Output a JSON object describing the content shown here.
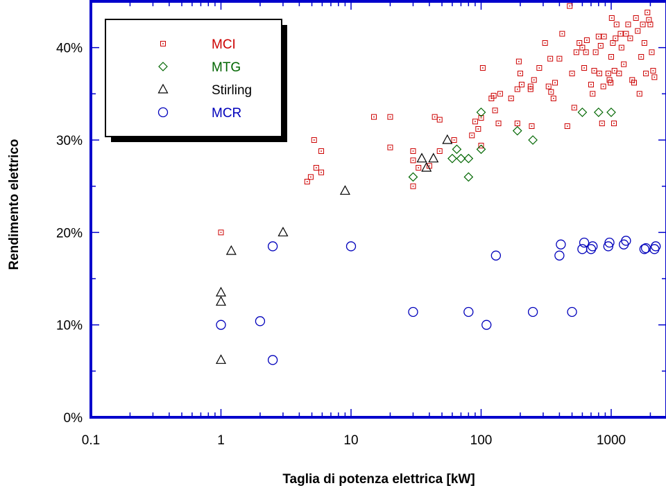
{
  "colors": {
    "frame": "#0000cc",
    "MCI": "#cc0000",
    "MTG": "#006600",
    "Stirling": "#000000",
    "MCR": "#0000bb"
  },
  "chart_data": {
    "type": "scatter",
    "xlabel": "Taglia di potenza elettrica [kW]",
    "ylabel": "Rendimento elettrico",
    "x_scale": "log",
    "xlim": [
      0.1,
      2500
    ],
    "ylim": [
      0,
      0.45
    ],
    "x_tick_labels": [
      {
        "value": 0.1,
        "label": "0.1"
      },
      {
        "value": 1,
        "label": "1"
      },
      {
        "value": 10,
        "label": "10"
      },
      {
        "value": 100,
        "label": "100"
      },
      {
        "value": 1000,
        "label": "1000"
      }
    ],
    "y_tick_labels": [
      {
        "value": 0,
        "label": "0%"
      },
      {
        "value": 0.1,
        "label": "10%"
      },
      {
        "value": 0.2,
        "label": "20%"
      },
      {
        "value": 0.3,
        "label": "30%"
      },
      {
        "value": 0.4,
        "label": "40%"
      }
    ],
    "grid": false,
    "legend_position": "top-left",
    "series": [
      {
        "name": "MCI",
        "marker": "dotted-square",
        "points": [
          [
            1,
            0.2
          ],
          [
            4.6,
            0.255
          ],
          [
            4.9,
            0.26
          ],
          [
            5.2,
            0.3
          ],
          [
            5.4,
            0.27
          ],
          [
            5.9,
            0.288
          ],
          [
            5.9,
            0.265
          ],
          [
            15,
            0.325
          ],
          [
            20,
            0.325
          ],
          [
            20,
            0.292
          ],
          [
            30,
            0.25
          ],
          [
            30,
            0.278
          ],
          [
            30,
            0.288
          ],
          [
            33,
            0.27
          ],
          [
            40,
            0.272
          ],
          [
            44,
            0.325
          ],
          [
            48,
            0.322
          ],
          [
            48,
            0.288
          ],
          [
            62,
            0.3
          ],
          [
            85,
            0.305
          ],
          [
            90,
            0.32
          ],
          [
            95,
            0.312
          ],
          [
            100,
            0.324
          ],
          [
            100,
            0.294
          ],
          [
            103,
            0.378
          ],
          [
            120,
            0.345
          ],
          [
            125,
            0.348
          ],
          [
            128,
            0.332
          ],
          [
            136,
            0.318
          ],
          [
            140,
            0.35
          ],
          [
            170,
            0.345
          ],
          [
            190,
            0.355
          ],
          [
            190,
            0.318
          ],
          [
            195,
            0.385
          ],
          [
            200,
            0.372
          ],
          [
            205,
            0.36
          ],
          [
            240,
            0.358
          ],
          [
            240,
            0.355
          ],
          [
            245,
            0.315
          ],
          [
            255,
            0.365
          ],
          [
            280,
            0.378
          ],
          [
            310,
            0.405
          ],
          [
            330,
            0.358
          ],
          [
            340,
            0.388
          ],
          [
            345,
            0.352
          ],
          [
            360,
            0.345
          ],
          [
            370,
            0.362
          ],
          [
            400,
            0.388
          ],
          [
            420,
            0.415
          ],
          [
            460,
            0.315
          ],
          [
            480,
            0.445
          ],
          [
            500,
            0.372
          ],
          [
            520,
            0.335
          ],
          [
            540,
            0.395
          ],
          [
            570,
            0.405
          ],
          [
            600,
            0.4
          ],
          [
            620,
            0.378
          ],
          [
            640,
            0.395
          ],
          [
            650,
            0.408
          ],
          [
            700,
            0.36
          ],
          [
            720,
            0.35
          ],
          [
            740,
            0.375
          ],
          [
            760,
            0.395
          ],
          [
            800,
            0.412
          ],
          [
            810,
            0.372
          ],
          [
            830,
            0.402
          ],
          [
            850,
            0.318
          ],
          [
            870,
            0.358
          ],
          [
            880,
            0.412
          ],
          [
            950,
            0.372
          ],
          [
            970,
            0.365
          ],
          [
            990,
            0.362
          ],
          [
            1000,
            0.39
          ],
          [
            1010,
            0.432
          ],
          [
            1030,
            0.405
          ],
          [
            1050,
            0.318
          ],
          [
            1060,
            0.375
          ],
          [
            1080,
            0.41
          ],
          [
            1100,
            0.425
          ],
          [
            1150,
            0.372
          ],
          [
            1180,
            0.415
          ],
          [
            1200,
            0.4
          ],
          [
            1250,
            0.382
          ],
          [
            1300,
            0.415
          ],
          [
            1350,
            0.425
          ],
          [
            1400,
            0.41
          ],
          [
            1450,
            0.365
          ],
          [
            1500,
            0.362
          ],
          [
            1550,
            0.432
          ],
          [
            1600,
            0.418
          ],
          [
            1650,
            0.35
          ],
          [
            1700,
            0.39
          ],
          [
            1750,
            0.425
          ],
          [
            1800,
            0.405
          ],
          [
            1850,
            0.372
          ],
          [
            1900,
            0.438
          ],
          [
            1950,
            0.43
          ],
          [
            2000,
            0.425
          ],
          [
            2050,
            0.395
          ],
          [
            2100,
            0.375
          ],
          [
            2150,
            0.368
          ]
        ]
      },
      {
        "name": "MTG",
        "marker": "diamond",
        "points": [
          [
            30,
            0.26
          ],
          [
            60,
            0.28
          ],
          [
            65,
            0.29
          ],
          [
            70,
            0.28
          ],
          [
            80,
            0.28
          ],
          [
            80,
            0.26
          ],
          [
            100,
            0.33
          ],
          [
            100,
            0.29
          ],
          [
            190,
            0.31
          ],
          [
            250,
            0.3
          ],
          [
            600,
            0.33
          ],
          [
            800,
            0.33
          ],
          [
            1000,
            0.33
          ]
        ]
      },
      {
        "name": "Stirling",
        "marker": "triangle",
        "points": [
          [
            1,
            0.062
          ],
          [
            1,
            0.125
          ],
          [
            1,
            0.135
          ],
          [
            1.2,
            0.18
          ],
          [
            3,
            0.2
          ],
          [
            9,
            0.245
          ],
          [
            35,
            0.28
          ],
          [
            38,
            0.27
          ],
          [
            43,
            0.28
          ],
          [
            55,
            0.3
          ]
        ]
      },
      {
        "name": "MCR",
        "marker": "circle",
        "points": [
          [
            1,
            0.1
          ],
          [
            2,
            0.104
          ],
          [
            2.5,
            0.185
          ],
          [
            2.5,
            0.062
          ],
          [
            10,
            0.185
          ],
          [
            30,
            0.114
          ],
          [
            80,
            0.114
          ],
          [
            110,
            0.1
          ],
          [
            130,
            0.175
          ],
          [
            250,
            0.114
          ],
          [
            400,
            0.175
          ],
          [
            410,
            0.187
          ],
          [
            500,
            0.114
          ],
          [
            600,
            0.182
          ],
          [
            620,
            0.189
          ],
          [
            700,
            0.182
          ],
          [
            720,
            0.185
          ],
          [
            950,
            0.185
          ],
          [
            970,
            0.189
          ],
          [
            1250,
            0.187
          ],
          [
            1300,
            0.191
          ],
          [
            1800,
            0.182
          ],
          [
            1850,
            0.183
          ],
          [
            2150,
            0.182
          ],
          [
            2200,
            0.185
          ]
        ]
      }
    ]
  }
}
